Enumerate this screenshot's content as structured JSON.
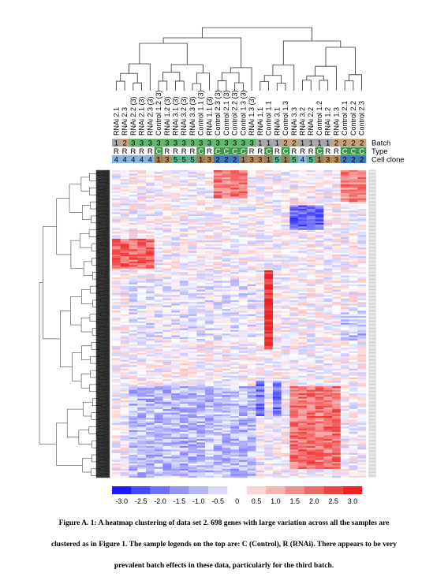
{
  "figure": {
    "samples": [
      {
        "label": "RNAi 2.1",
        "batch": "1",
        "type": "R",
        "clone": "4"
      },
      {
        "label": "RNAi 2.3",
        "batch": "2",
        "type": "R",
        "clone": "4"
      },
      {
        "label": "RNAi 2.2 (3)",
        "batch": "3",
        "type": "R",
        "clone": "4"
      },
      {
        "label": "RNAi 2.1 (3)",
        "batch": "3",
        "type": "R",
        "clone": "4"
      },
      {
        "label": "RNAi 2.3 (3)",
        "batch": "3",
        "type": "R",
        "clone": "4"
      },
      {
        "label": "Control 1.2 (3)",
        "batch": "3",
        "type": "C",
        "clone": "1"
      },
      {
        "label": "RNAi 1.2 (3)",
        "batch": "3",
        "type": "R",
        "clone": "3"
      },
      {
        "label": "RNAi 3.1 (3)",
        "batch": "3",
        "type": "R",
        "clone": "5"
      },
      {
        "label": "RNAi 3.2 (3)",
        "batch": "3",
        "type": "R",
        "clone": "5"
      },
      {
        "label": "RNAi 3.3 (3)",
        "batch": "3",
        "type": "R",
        "clone": "5"
      },
      {
        "label": "Control 1.1 (3)",
        "batch": "3",
        "type": "C",
        "clone": "1"
      },
      {
        "label": "RNAi 1.1 (3)",
        "batch": "3",
        "type": "R",
        "clone": "3"
      },
      {
        "label": "Control 2.3 (3)",
        "batch": "3",
        "type": "C",
        "clone": "2"
      },
      {
        "label": "Control 2.1 (3)",
        "batch": "3",
        "type": "C",
        "clone": "2"
      },
      {
        "label": "Control 2.2 (3)",
        "batch": "3",
        "type": "C",
        "clone": "2"
      },
      {
        "label": "Control 1.3 (3)",
        "batch": "3",
        "type": "C",
        "clone": "1"
      },
      {
        "label": "RNAi 1.3 (3)",
        "batch": "3",
        "type": "R",
        "clone": "3"
      },
      {
        "label": "RNAi 1.1",
        "batch": "1",
        "type": "R",
        "clone": "3"
      },
      {
        "label": "Control 1.1",
        "batch": "1",
        "type": "C",
        "clone": "1"
      },
      {
        "label": "RNAi 3.1",
        "batch": "1",
        "type": "R",
        "clone": "5"
      },
      {
        "label": "Control 1.3",
        "batch": "2",
        "type": "C",
        "clone": "1"
      },
      {
        "label": "RNAi 3.3",
        "batch": "2",
        "type": "R",
        "clone": "5"
      },
      {
        "label": "RNAi 3.2",
        "batch": "1",
        "type": "R",
        "clone": "4"
      },
      {
        "label": "RNAi 2.2",
        "batch": "1",
        "type": "R",
        "clone": "5"
      },
      {
        "label": "Control 1.2",
        "batch": "1",
        "type": "C",
        "clone": "1"
      },
      {
        "label": "RNAi 1.2",
        "batch": "1",
        "type": "R",
        "clone": "3"
      },
      {
        "label": "RNAi 1.3",
        "batch": "2",
        "type": "R",
        "clone": "3"
      },
      {
        "label": "Control 2.1",
        "batch": "2",
        "type": "C",
        "clone": "2"
      },
      {
        "label": "Control 2.2",
        "batch": "2",
        "type": "C",
        "clone": "2"
      },
      {
        "label": "Control 2.3",
        "batch": "2",
        "type": "C",
        "clone": "2"
      }
    ],
    "legend_rows": [
      "Batch",
      "Type",
      "Cell clone"
    ],
    "batch_colors": {
      "1": "#a7a7a7",
      "2": "#c9a27a",
      "3": "#5fb86b"
    },
    "type_colors": {
      "R": "#ffffff",
      "C": "#3a9a45"
    },
    "clone_colors": {
      "1": "#9b7f5a",
      "2": "#3f79c2",
      "3": "#b48a58",
      "4": "#8ab4de",
      "5": "#59b58e"
    },
    "color_scale": {
      "ticks": [
        "-3.0",
        "-2.5",
        "-2.0",
        "-1.5",
        "-1.0",
        "-0.5",
        "0",
        "0.5",
        "1.0",
        "1.5",
        "2.0",
        "2.5",
        "3.0"
      ],
      "colors": [
        "#1a1aff",
        "#4747ff",
        "#6f6ff5",
        "#9494ee",
        "#b6b6f0",
        "#d8d8f6",
        "#ffffff",
        "#f8d6d6",
        "#f2b4b4",
        "#ee8f8f",
        "#eb6a6a",
        "#ec4444",
        "#f02020"
      ],
      "negative_color": "#2020ff",
      "positive_color": "#f02020"
    },
    "caption_lines": [
      "Figure A. 1: A heatmap clustering of data set 2. 698 genes with large variation across all the samples are",
      "clustered as in Figure 1. The sample legends on the top are: C (Control), R (RNAi). There appears to be very",
      "prevalent batch effects in these data, particularly for the third batch."
    ]
  },
  "chart_data": {
    "type": "heatmap",
    "rows_count": 698,
    "columns": [
      "RNAi 2.1",
      "RNAi 2.3",
      "RNAi 2.2 (3)",
      "RNAi 2.1 (3)",
      "RNAi 2.3 (3)",
      "Control 1.2 (3)",
      "RNAi 1.2 (3)",
      "RNAi 3.1 (3)",
      "RNAi 3.2 (3)",
      "RNAi 3.3 (3)",
      "Control 1.1 (3)",
      "RNAi 1.1 (3)",
      "Control 2.3 (3)",
      "Control 2.1 (3)",
      "Control 2.2 (3)",
      "Control 1.3 (3)",
      "RNAi 1.3 (3)",
      "RNAi 1.1",
      "Control 1.1",
      "RNAi 3.1",
      "Control 1.3",
      "RNAi 3.3",
      "RNAi 3.2",
      "RNAi 2.2",
      "Control 1.2",
      "RNAi 1.2",
      "RNAi 1.3",
      "Control 2.1",
      "Control 2.2",
      "Control 2.3"
    ],
    "color_range": [
      -3.0,
      3.0
    ],
    "legend_ticks": [
      -3.0,
      -2.5,
      -2.0,
      -1.5,
      -1.0,
      -0.5,
      0,
      0.5,
      1.0,
      1.5,
      2.0,
      2.5,
      3.0
    ]
  }
}
